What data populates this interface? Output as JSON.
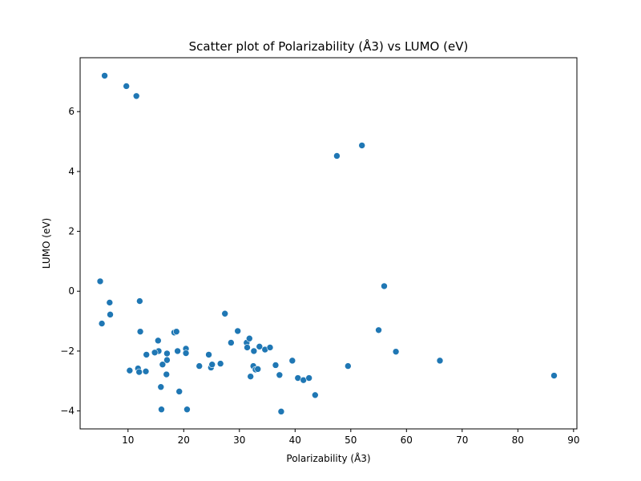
{
  "chart_data": {
    "type": "scatter",
    "title": "Scatter plot of Polarizability (Å3) vs LUMO (eV)",
    "xlabel": "Polarizability (Å3)",
    "ylabel": "LUMO (eV)",
    "xlim": [
      1.4,
      90.6
    ],
    "ylim": [
      -4.6,
      7.8
    ],
    "xticks": [
      10,
      20,
      30,
      40,
      50,
      60,
      70,
      80,
      90
    ],
    "yticks": [
      -4,
      -2,
      0,
      2,
      4,
      6
    ],
    "grid": false,
    "legend": "none",
    "marker_color": "#1f77b4",
    "series": [
      {
        "x": [
          5.8,
          9.7,
          11.5,
          47.5,
          52.0,
          5.0,
          6.7,
          12.1,
          5.3,
          6.8,
          12.2,
          15.4,
          15.5,
          14.8,
          13.3,
          17.0,
          18.3,
          18.7,
          20.4,
          20.4,
          18.9,
          16.2,
          17.0,
          16.9,
          10.3,
          11.8,
          12.0,
          13.2,
          15.9,
          16.0,
          19.2,
          20.6,
          22.8,
          24.5,
          24.9,
          25.1,
          26.6,
          27.4,
          28.5,
          29.7,
          31.3,
          31.4,
          31.8,
          32.0,
          32.5,
          32.6,
          32.9,
          33.3,
          33.6,
          34.6,
          35.5,
          36.5,
          37.2,
          37.5,
          39.5,
          40.5,
          41.5,
          42.5,
          43.6,
          49.5,
          55.0,
          56.0,
          58.1,
          66.0,
          86.5
        ],
        "y": [
          7.2,
          6.85,
          6.52,
          4.52,
          4.87,
          0.33,
          -0.38,
          -0.33,
          -1.08,
          -0.78,
          -1.35,
          -1.65,
          -2.0,
          -2.05,
          -2.12,
          -2.08,
          -1.38,
          -1.35,
          -1.92,
          -2.07,
          -2.0,
          -2.45,
          -2.3,
          -2.78,
          -2.65,
          -2.58,
          -2.7,
          -2.68,
          -3.2,
          -3.95,
          -3.35,
          -3.95,
          -2.5,
          -2.12,
          -2.55,
          -2.45,
          -2.42,
          -0.75,
          -1.72,
          -1.33,
          -1.72,
          -1.88,
          -1.58,
          -2.85,
          -2.5,
          -2.0,
          -2.62,
          -2.6,
          -1.85,
          -1.95,
          -1.88,
          -2.47,
          -2.8,
          -4.02,
          -2.32,
          -2.9,
          -2.97,
          -2.9,
          -3.47,
          -2.5,
          -1.3,
          0.17,
          -2.02,
          -2.32,
          -2.82
        ]
      }
    ]
  }
}
